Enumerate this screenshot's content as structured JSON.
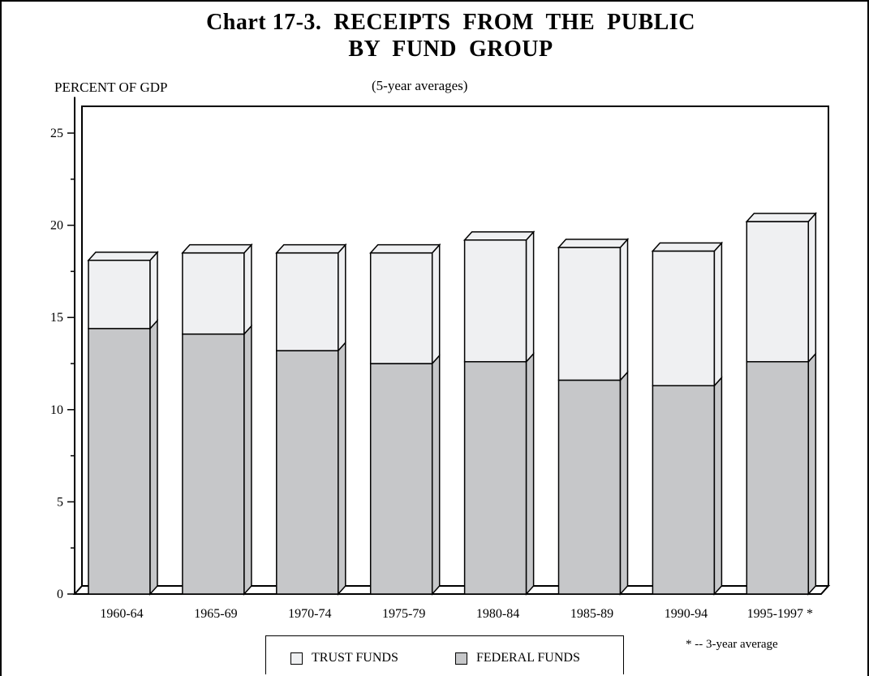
{
  "chart_data": {
    "type": "bar",
    "stacked": true,
    "title_line1": "Chart 17-3.  RECEIPTS  FROM  THE  PUBLIC",
    "title_line2": "BY  FUND  GROUP",
    "subtitle": "(5-year averages)",
    "ylabel": "PERCENT OF GDP",
    "xlabel": "",
    "ylim": [
      0,
      27
    ],
    "yticks": [
      0,
      5,
      10,
      15,
      20,
      25
    ],
    "categories": [
      "1960-64",
      "1965-69",
      "1970-74",
      "1975-79",
      "1980-84",
      "1985-89",
      "1990-94",
      "1995-1997 *"
    ],
    "series": [
      {
        "name": "FEDERAL FUNDS",
        "color": "#c6c7c9",
        "values": [
          14.4,
          14.1,
          13.2,
          12.5,
          12.6,
          11.6,
          11.3,
          12.6
        ]
      },
      {
        "name": "TRUST FUNDS",
        "color": "#eff0f2",
        "values": [
          3.7,
          4.4,
          5.3,
          6.0,
          6.6,
          7.2,
          7.3,
          7.6
        ]
      }
    ],
    "legend_position": "bottom-center",
    "footnote": "* -- 3-year average",
    "grid": false
  }
}
